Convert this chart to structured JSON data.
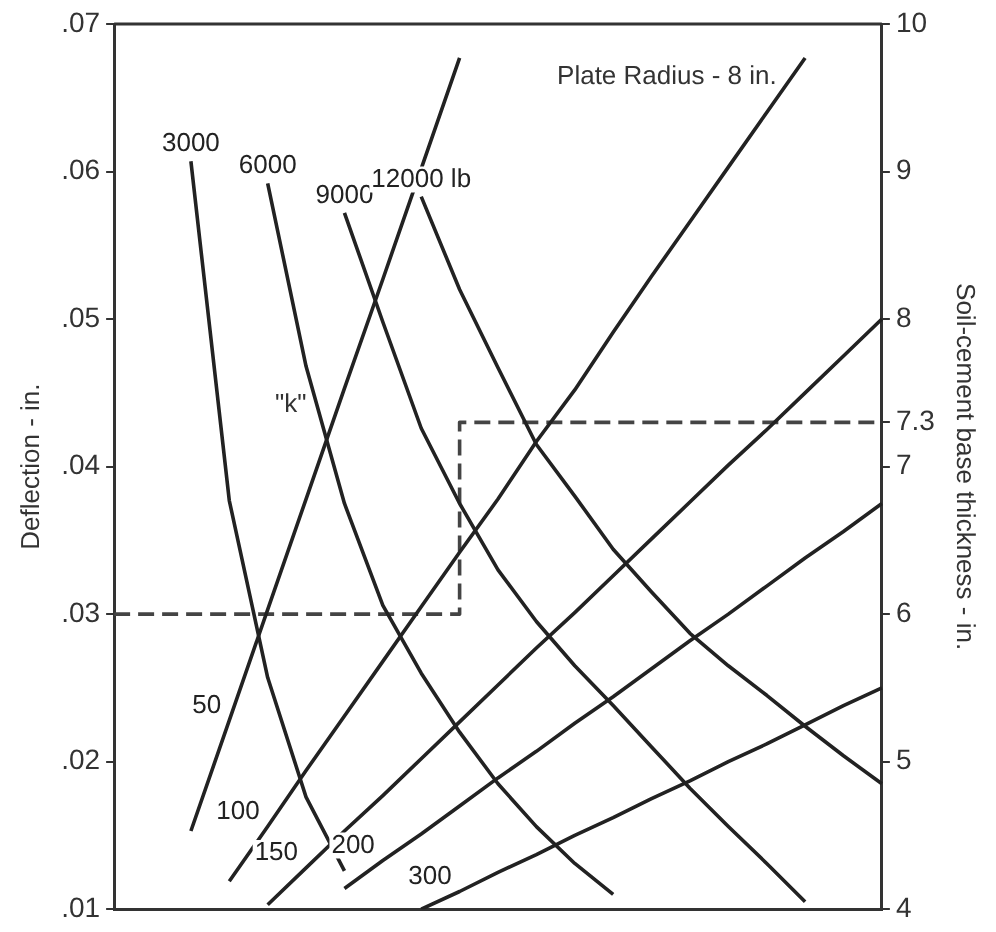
{
  "chart_data": {
    "type": "line",
    "ylabel": "Deflection - in.",
    "y2label": "Soil-cement base thickness - in.",
    "annotations": [
      "Plate Radius - 8 in.",
      "\"k\""
    ],
    "categories": [
      null,
      null,
      null,
      null,
      null,
      null,
      null,
      null,
      null,
      null,
      null,
      null,
      null,
      null,
      null,
      null,
      null,
      null,
      null,
      null,
      null
    ],
    "series": [
      {
        "name": "3000",
        "color": "#222222",
        "values": [
          null,
          null,
          0.0607,
          0.0377,
          0.0257,
          0.0176,
          0.0126,
          null,
          null,
          null,
          null,
          null,
          null,
          null,
          null,
          null,
          null,
          null,
          null,
          null,
          null
        ]
      },
      {
        "name": "6000",
        "color": "#222222",
        "values": [
          null,
          null,
          null,
          null,
          0.0592,
          0.0468,
          0.0375,
          0.0306,
          0.026,
          0.022,
          0.0185,
          0.0156,
          0.0131,
          0.011,
          null,
          null,
          null,
          null,
          null,
          null,
          null
        ]
      },
      {
        "name": "9000",
        "color": "#222222",
        "values": [
          null,
          null,
          null,
          null,
          null,
          null,
          0.0572,
          0.0498,
          0.0426,
          0.0375,
          0.033,
          0.0295,
          0.0265,
          0.0238,
          0.021,
          0.0182,
          0.0156,
          0.0131,
          0.0105,
          null,
          null
        ]
      },
      {
        "name": "12000 lb",
        "color": "#222222",
        "values": [
          null,
          null,
          null,
          null,
          null,
          null,
          null,
          null,
          0.0583,
          0.052,
          0.0467,
          0.0415,
          0.038,
          0.0344,
          0.0315,
          0.0287,
          0.0265,
          0.0245,
          0.0224,
          0.0204,
          0.0185
        ]
      },
      {
        "name": "50",
        "color": "#222222",
        "axis": "y2",
        "values": [
          null,
          null,
          4.53,
          5.28,
          6.03,
          6.78,
          7.53,
          8.27,
          9.02,
          9.77,
          null,
          null,
          null,
          null,
          null,
          null,
          null,
          null,
          null,
          null,
          null
        ]
      },
      {
        "name": "100",
        "color": "#222222",
        "axis": "y2",
        "values": [
          null,
          null,
          null,
          4.19,
          4.56,
          4.94,
          5.31,
          5.68,
          6.05,
          6.42,
          6.78,
          7.17,
          7.52,
          7.91,
          8.29,
          8.66,
          9.03,
          9.4,
          9.77,
          null,
          null
        ]
      },
      {
        "name": "150",
        "color": "#222222",
        "axis": "y2",
        "values": [
          null,
          null,
          null,
          null,
          4.03,
          4.28,
          4.53,
          4.77,
          5.02,
          5.27,
          5.52,
          5.77,
          6.01,
          6.26,
          6.51,
          6.76,
          7.01,
          7.25,
          7.5,
          7.75,
          8.0
        ]
      },
      {
        "name": "200",
        "color": "#222222",
        "axis": "y2",
        "values": [
          null,
          null,
          null,
          null,
          null,
          null,
          4.14,
          4.33,
          4.51,
          4.7,
          4.89,
          5.07,
          5.26,
          5.44,
          5.63,
          5.82,
          6.0,
          6.19,
          6.38,
          6.56,
          6.75
        ]
      },
      {
        "name": "300",
        "color": "#222222",
        "axis": "y2",
        "values": [
          null,
          null,
          null,
          null,
          null,
          null,
          null,
          null,
          4.0,
          4.12,
          4.25,
          4.37,
          4.5,
          4.62,
          4.75,
          4.87,
          5.0,
          5.12,
          5.25,
          5.38,
          5.5
        ]
      },
      {
        "type": "step",
        "color": "#444444",
        "line_style": "dashed",
        "values": [
          0.03,
          0.03,
          0.03,
          0.03,
          0.03,
          0.03,
          0.03,
          0.03,
          0.03,
          0.043,
          0.043,
          0.043,
          0.043,
          0.043,
          0.043,
          0.043,
          0.043,
          0.043,
          0.043,
          0.043,
          0.043
        ]
      }
    ],
    "ylim": [
      0.01,
      0.07
    ],
    "yticks": [
      {
        "value": 0.01,
        "label": ".01"
      },
      {
        "value": 0.02,
        "label": ".02"
      },
      {
        "value": 0.03,
        "label": ".03"
      },
      {
        "value": 0.04,
        "label": ".04"
      },
      {
        "value": 0.05,
        "label": ".05"
      },
      {
        "value": 0.06,
        "label": ".06"
      },
      {
        "value": 0.07,
        "label": ".07"
      }
    ],
    "y2lim": [
      4,
      10
    ],
    "y2ticks": [
      4,
      5,
      6,
      7,
      {
        "value": 7.3,
        "label": "7.3"
      },
      8,
      9,
      10
    ],
    "marker": "none",
    "grid": false,
    "legend": false,
    "tick_labels": "y"
  }
}
